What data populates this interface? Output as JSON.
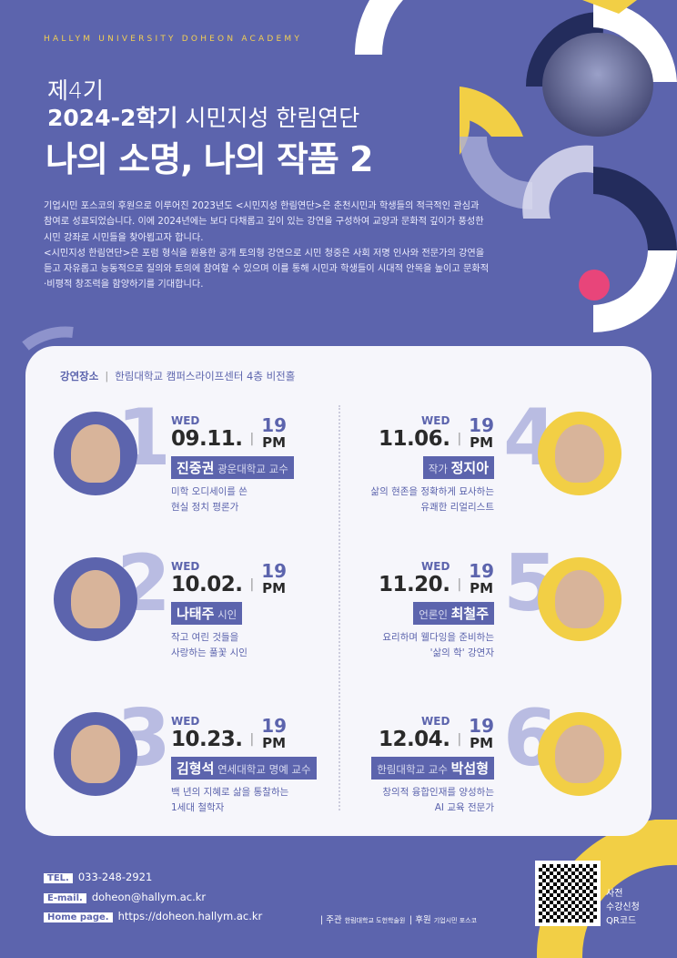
{
  "header": {
    "academy": "HALLYM UNIVERSITY DOHEON ACADEMY",
    "edition": "제4기",
    "semester": "2024-2학기",
    "series_name": "시민지성 한림연단",
    "title": "나의 소명, 나의 작품 2"
  },
  "intro": [
    "기업시민 포스코의 후원으로 이루어진 2023년도 <시민지성 한림연단>은 춘천시민과 학생들의 적극적인 관심과 참여로 성료되었습니다. 이에 2024년에는 보다 다채롭고 깊이 있는 강연을 구성하여 교양과 문화적 깊이가 풍성한 시민 강좌로 시민들을 찾아뵙고자 합니다.",
    "<시민지성 한림연단>은 포럼 형식을 원용한 공개 토의형 강연으로 시민 청중은 사회 저명 인사와 전문가의 강연을 듣고 자유롭고 능동적으로 질의와 토의에 참여할 수 있으며 이를 통해 시민과 학생들이 시대적 안목을 높이고 문화적·비평적 창조력을 함양하기를 기대합니다."
  ],
  "venue": {
    "label": "강연장소",
    "value": "한림대학교 캠퍼스라이프센터 4층 비전홀"
  },
  "lectures": [
    {
      "num": "1",
      "day": "WED",
      "date": "09.11.",
      "hour": "19",
      "ampm": "PM",
      "name": "진중권",
      "title": "광운대학교 교수",
      "desc": [
        "미학 오디세이를 쓴",
        "현실 정치 평론가"
      ]
    },
    {
      "num": "2",
      "day": "WED",
      "date": "10.02.",
      "hour": "19",
      "ampm": "PM",
      "name": "나태주",
      "title": "시인",
      "desc": [
        "작고 여린 것들을",
        "사랑하는 풀꽃 시인"
      ]
    },
    {
      "num": "3",
      "day": "WED",
      "date": "10.23.",
      "hour": "19",
      "ampm": "PM",
      "name": "김형석",
      "title": "연세대학교 명예 교수",
      "desc": [
        "백 년의 지혜로 삶을 통찰하는",
        "1세대 철학자"
      ]
    },
    {
      "num": "4",
      "day": "WED",
      "date": "11.06.",
      "hour": "19",
      "ampm": "PM",
      "name": "정지아",
      "title": "작가",
      "desc": [
        "삶의 현존을 정확하게 묘사하는",
        "유쾌한 리얼리스트"
      ]
    },
    {
      "num": "5",
      "day": "WED",
      "date": "11.20.",
      "hour": "19",
      "ampm": "PM",
      "name": "최철주",
      "title": "언론인",
      "desc": [
        "요리하며 웰다잉을 준비하는",
        "'삶의 학' 강연자"
      ]
    },
    {
      "num": "6",
      "day": "WED",
      "date": "12.04.",
      "hour": "19",
      "ampm": "PM",
      "name": "박섭형",
      "title": "한림대학교 교수",
      "desc": [
        "창의적 융합인재를 양성하는",
        "AI 교육 전문가"
      ]
    }
  ],
  "footer": {
    "tel_label": "TEL.",
    "tel": "033-248-2921",
    "email_label": "E-mail.",
    "email": "doheon@hallym.ac.kr",
    "home_label": "Home page.",
    "home": "https://doheon.hallym.ac.kr",
    "host_label": "| 주관",
    "host": "한림대학교 도헌학술원",
    "sponsor_label": "| 후원",
    "sponsor": "기업시민 포스코",
    "qr_text": [
      "사전",
      "수강신청",
      "QR코드"
    ]
  },
  "colors": {
    "background": "#5c64ad",
    "accent_yellow": "#f2cf45",
    "accent_pink": "#e8457a",
    "navy": "#232c5c",
    "card": "#f6f6fb"
  }
}
